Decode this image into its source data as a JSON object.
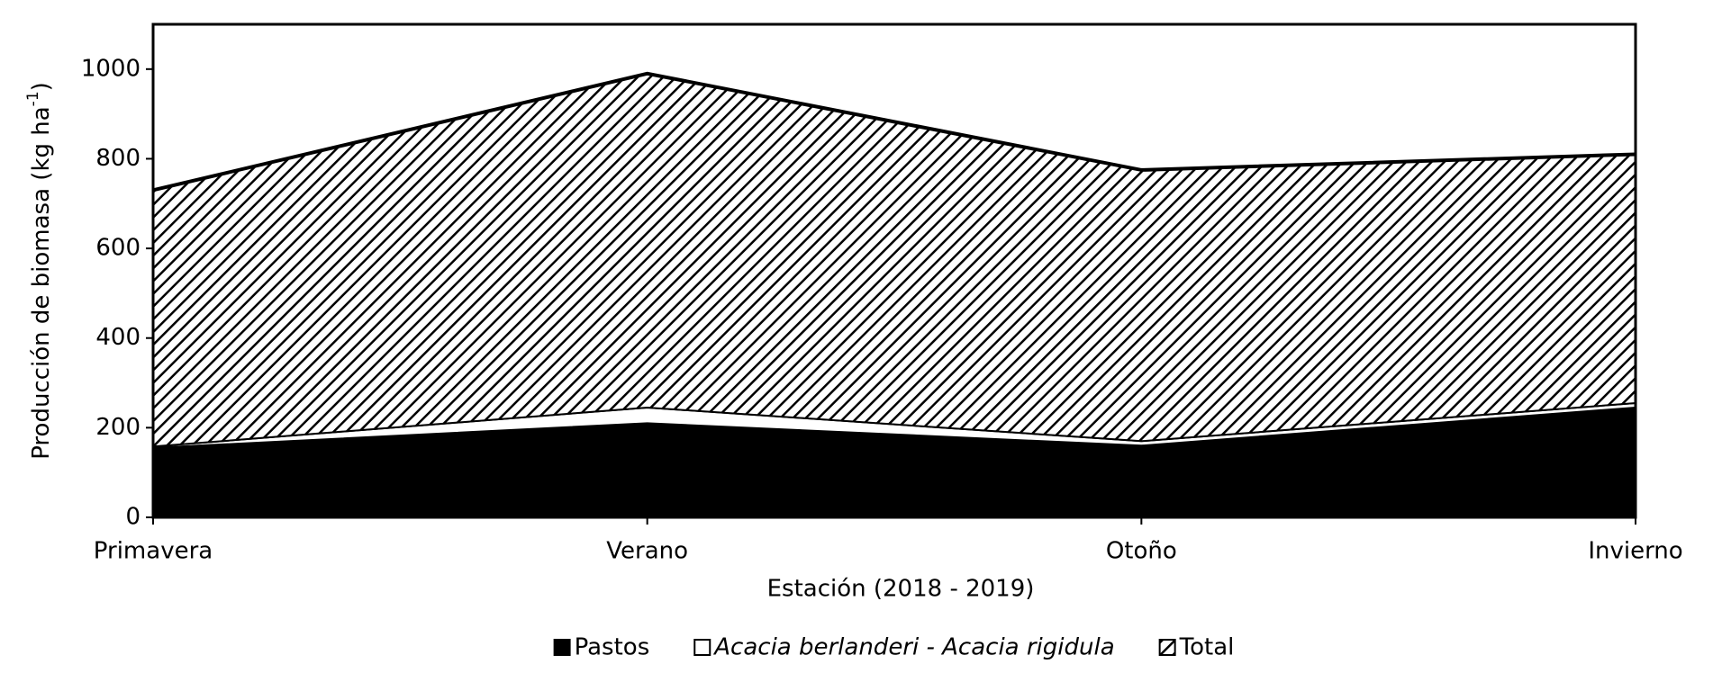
{
  "chart_data": {
    "type": "stacked_area",
    "x_label": "Estación  (2018 - 2019)",
    "y_label": {
      "text": "Producción de biomasa (kg ha",
      "sup": "-1",
      "end": ")"
    },
    "categories": [
      "Primavera",
      "Verano",
      "Otoño",
      "Invierno"
    ],
    "series": [
      {
        "name": "Pastos",
        "color": "#000000",
        "values": [
          155,
          210,
          160,
          245
        ]
      },
      {
        "name": "Acacia berlanderi - Acacia rigidula",
        "color": "#ffffff",
        "italic": true,
        "values": [
          3,
          35,
          10,
          10
        ]
      },
      {
        "name": "Total",
        "color": "#000000",
        "pattern": "hatch",
        "values": [
          572,
          745,
          605,
          555
        ]
      }
    ],
    "ylim": [
      0,
      1100
    ],
    "yticks": [
      0,
      200,
      400,
      600,
      800,
      1000
    ],
    "legend": "bottom"
  }
}
